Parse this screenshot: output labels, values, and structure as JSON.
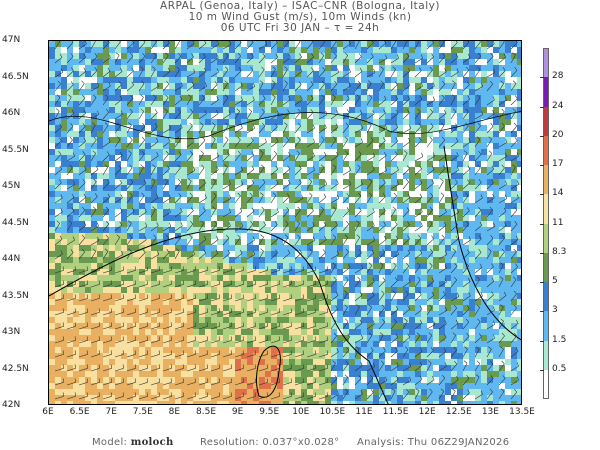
{
  "header": {
    "line1": "ARPAL (Genoa, Italy)  –  ISAC–CNR (Bologna, Italy)",
    "line2": "10 m Wind Gust (m/s), 10m Winds (kn)",
    "line3": "06 UTC Fri 30 JAN  –  τ = 24h"
  },
  "map": {
    "lat_labels": [
      "47N",
      "46.5N",
      "46N",
      "45.5N",
      "45N",
      "44.5N",
      "44N",
      "43.5N",
      "43N",
      "42.5N",
      "42N"
    ],
    "lon_labels": [
      "6E",
      "6.5E",
      "7E",
      "7.5E",
      "8E",
      "8.5E",
      "9E",
      "9.5E",
      "10E",
      "10.5E",
      "11E",
      "11.5E",
      "12E",
      "12.5E",
      "13E",
      "13.5E"
    ]
  },
  "colorbar": {
    "labels": [
      "28",
      "24",
      "20",
      "17",
      "14",
      "11",
      "8.3",
      "5",
      "3",
      "1.5",
      "0.5"
    ],
    "colors": [
      "#b090e0",
      "#7a18b8",
      "#c03a3a",
      "#e0704a",
      "#e8b060",
      "#f8e0a0",
      "#b0d080",
      "#6a9a50",
      "#3a80d0",
      "#60b8f0",
      "#a8e8d0",
      "#ffffff"
    ]
  },
  "footer": {
    "model_label": "Model:",
    "model": "moloch",
    "resolution_label": "Resolution:",
    "resolution": "0.037°x0.028°",
    "analysis_label": "Analysis:",
    "analysis": "Thu  06Z29JAN2026"
  }
}
